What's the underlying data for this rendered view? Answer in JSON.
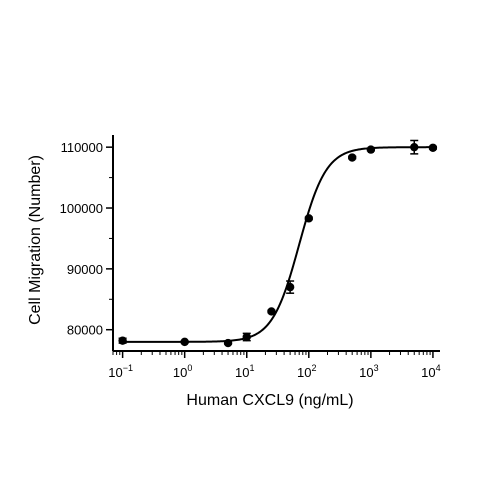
{
  "chart_data": {
    "type": "scatter",
    "xlabel": "Human CXCL9 (ng/mL)",
    "ylabel": "Cell Migration (Number)",
    "x_scale": "log",
    "xlim": [
      0.07,
      13000
    ],
    "ylim": [
      76500,
      112000
    ],
    "x_ticks": [
      {
        "value": 0.1,
        "base": "10",
        "exp": "−1"
      },
      {
        "value": 1,
        "base": "10",
        "exp": "0"
      },
      {
        "value": 10,
        "base": "10",
        "exp": "1"
      },
      {
        "value": 100,
        "base": "10",
        "exp": "2"
      },
      {
        "value": 1000,
        "base": "10",
        "exp": "3"
      },
      {
        "value": 10000,
        "base": "10",
        "exp": "4"
      }
    ],
    "y_ticks": [
      {
        "value": 80000,
        "label": "80000"
      },
      {
        "value": 90000,
        "label": "90000"
      },
      {
        "value": 100000,
        "label": "100000"
      },
      {
        "value": 110000,
        "label": "110000"
      }
    ],
    "points": [
      {
        "x": 0.1,
        "y": 78200,
        "err": 400
      },
      {
        "x": 1,
        "y": 78000,
        "err": 150
      },
      {
        "x": 5,
        "y": 77800,
        "err": 150
      },
      {
        "x": 10,
        "y": 78800,
        "err": 600
      },
      {
        "x": 25,
        "y": 83000,
        "err": 200
      },
      {
        "x": 50,
        "y": 87000,
        "err": 1000
      },
      {
        "x": 100,
        "y": 98300,
        "err": 200
      },
      {
        "x": 500,
        "y": 108300,
        "err": 200
      },
      {
        "x": 1000,
        "y": 109600,
        "err": 200
      },
      {
        "x": 5000,
        "y": 110000,
        "err": 1100
      },
      {
        "x": 10000,
        "y": 109900,
        "err": 200
      }
    ],
    "fit": {
      "model": "4PL",
      "bottom": 78000,
      "top": 110000,
      "ec50": 70,
      "hill": 2
    }
  }
}
